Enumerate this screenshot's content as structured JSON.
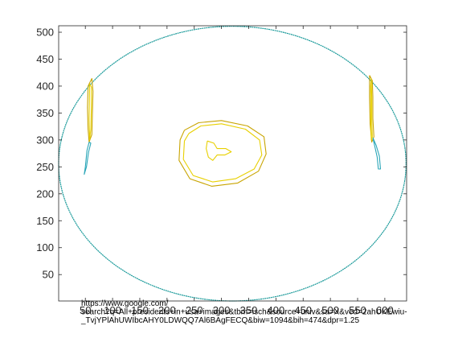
{
  "chart_data": {
    "type": "contour",
    "title": "",
    "xlabel_lines": [
      "https://www.google.com/",
      "search?q=All+presidents+in+usa+images&tbm=isch&source=univ&sa=X&ved=2ahUKEwiu-",
      "_TvjYPlAhUWIbcAHY0LDWQQ7Al6BAgFECQ&biw=1094&bih=474&dpr=1.25"
    ],
    "ylabel": "",
    "xlim": [
      1,
      640
    ],
    "ylim": [
      1,
      512
    ],
    "y_reversed": false,
    "grid": false,
    "legend": "none",
    "x_ticks": [
      50,
      100,
      150,
      200,
      250,
      300,
      350,
      400,
      450,
      500,
      550,
      600
    ],
    "x_tick_labels": [
      "50",
      "100",
      "150",
      "200",
      "250",
      "300",
      "350",
      "400",
      "450",
      "500",
      "550",
      "600"
    ],
    "y_ticks": [
      50,
      100,
      150,
      200,
      250,
      300,
      350,
      400,
      450,
      500
    ],
    "y_tick_labels": [
      "50",
      "100",
      "150",
      "200",
      "250",
      "300",
      "350",
      "400",
      "450",
      "500"
    ],
    "colors": {
      "outer_contour": "#1a9a9a",
      "inner_contour_dark": "#c8a400",
      "inner_contour_light": "#e8d000",
      "left_streak_low": "#2aa6b8",
      "axis": "#262626"
    },
    "series": [
      {
        "level": "low",
        "color_key": "outer_contour",
        "center": [
          320,
          256
        ],
        "radius_x": 319,
        "radius_y": 255
      },
      {
        "level": "high",
        "color_key": "inner_contour_dark",
        "points": [
          [
            232,
            318
          ],
          [
            258,
            332
          ],
          [
            300,
            336
          ],
          [
            348,
            326
          ],
          [
            378,
            306
          ],
          [
            382,
            274
          ],
          [
            368,
            242
          ],
          [
            330,
            220
          ],
          [
            282,
            214
          ],
          [
            242,
            228
          ],
          [
            222,
            262
          ],
          [
            224,
            300
          ],
          [
            232,
            318
          ]
        ]
      },
      {
        "level": "mid",
        "color_key": "inner_contour_light",
        "points": [
          [
            240,
            312
          ],
          [
            262,
            326
          ],
          [
            300,
            330
          ],
          [
            344,
            320
          ],
          [
            370,
            300
          ],
          [
            374,
            272
          ],
          [
            360,
            246
          ],
          [
            326,
            228
          ],
          [
            284,
            222
          ],
          [
            248,
            234
          ],
          [
            230,
            264
          ],
          [
            232,
            298
          ],
          [
            240,
            312
          ]
        ]
      },
      {
        "level": "top",
        "color_key": "inner_contour_light",
        "points": [
          [
            274,
            298
          ],
          [
            286,
            294
          ],
          [
            292,
            284
          ],
          [
            308,
            284
          ],
          [
            318,
            278
          ],
          [
            306,
            272
          ],
          [
            292,
            272
          ],
          [
            284,
            262
          ],
          [
            276,
            268
          ],
          [
            272,
            284
          ],
          [
            274,
            298
          ]
        ]
      },
      {
        "level": "high",
        "color_key": "inner_contour_dark",
        "points": [
          [
            55,
            400
          ],
          [
            62,
            414
          ],
          [
            64,
            390
          ],
          [
            63,
            350
          ],
          [
            62,
            310
          ],
          [
            57,
            296
          ],
          [
            55,
            320
          ],
          [
            54,
            360
          ],
          [
            55,
            400
          ]
        ]
      },
      {
        "level": "mid",
        "color_key": "inner_contour_light",
        "points": [
          [
            58,
            404
          ],
          [
            61,
            398
          ],
          [
            61,
            360
          ],
          [
            60,
            320
          ],
          [
            58,
            300
          ],
          [
            57,
            340
          ],
          [
            58,
            404
          ]
        ]
      },
      {
        "level": "low",
        "color_key": "left_streak_low",
        "points": [
          [
            57,
            296
          ],
          [
            53,
            280
          ],
          [
            50,
            250
          ],
          [
            48,
            236
          ],
          [
            52,
            250
          ],
          [
            56,
            278
          ],
          [
            60,
            294
          ],
          [
            57,
            296
          ]
        ]
      },
      {
        "level": "high",
        "color_key": "inner_contour_dark",
        "points": [
          [
            572,
            420
          ],
          [
            577,
            410
          ],
          [
            578,
            380
          ],
          [
            578,
            340
          ],
          [
            580,
            306
          ],
          [
            576,
            296
          ],
          [
            573,
            330
          ],
          [
            572,
            380
          ],
          [
            572,
            420
          ]
        ]
      },
      {
        "level": "mid",
        "color_key": "inner_contour_light",
        "points": [
          [
            575,
            414
          ],
          [
            576,
            380
          ],
          [
            576,
            340
          ],
          [
            577,
            306
          ],
          [
            575,
            300
          ],
          [
            574,
            340
          ],
          [
            574,
            400
          ],
          [
            575,
            414
          ]
        ]
      },
      {
        "level": "low",
        "color_key": "left_streak_low",
        "points": [
          [
            578,
            304
          ],
          [
            584,
            290
          ],
          [
            590,
            270
          ],
          [
            592,
            246
          ],
          [
            588,
            246
          ],
          [
            586,
            268
          ],
          [
            582,
            286
          ],
          [
            578,
            304
          ]
        ]
      }
    ]
  }
}
